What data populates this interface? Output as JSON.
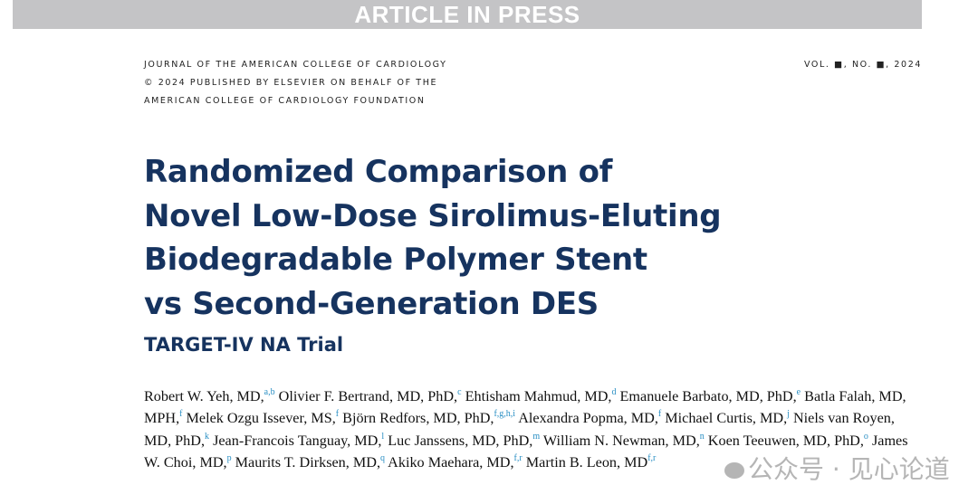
{
  "banner": {
    "text": "ARTICLE IN PRESS"
  },
  "journal": {
    "lines": [
      "JOURNAL OF THE AMERICAN COLLEGE OF CARDIOLOGY",
      "© 2024 PUBLISHED BY ELSEVIER ON BEHALF OF THE",
      "AMERICAN COLLEGE OF CARDIOLOGY FOUNDATION"
    ],
    "volume": "VOL. ■, NO. ■, 2024"
  },
  "title": {
    "lines": [
      "Randomized Comparison of",
      "Novel Low-Dose Sirolimus-Eluting",
      "Biodegradable Polymer Stent",
      "vs Second-Generation DES"
    ]
  },
  "subtitle": "TARGET-IV NA Trial",
  "authors": [
    {
      "name": "Robert W. Yeh, MD,",
      "sup": "a,b"
    },
    {
      "name": "Olivier F. Bertrand, MD, PhD,",
      "sup": "c"
    },
    {
      "name": "Ehtisham Mahmud, MD,",
      "sup": "d"
    },
    {
      "name": "Emanuele Barbato, MD, PhD,",
      "sup": "e"
    },
    {
      "name": "Batla Falah, MD, MPH,",
      "sup": "f"
    },
    {
      "name": "Melek Ozgu Issever, MS,",
      "sup": "f"
    },
    {
      "name": "Björn Redfors, MD, PhD,",
      "sup": "f,g,h,i"
    },
    {
      "name": "Alexandra Popma, MD,",
      "sup": "f"
    },
    {
      "name": "Michael Curtis, MD,",
      "sup": "j"
    },
    {
      "name": "Niels van Royen, MD, PhD,",
      "sup": "k"
    },
    {
      "name": "Jean-Francois Tanguay, MD,",
      "sup": "l"
    },
    {
      "name": "Luc Janssens, MD, PhD,",
      "sup": "m"
    },
    {
      "name": "William N. Newman, MD,",
      "sup": "n"
    },
    {
      "name": "Koen Teeuwen, MD, PhD,",
      "sup": "o"
    },
    {
      "name": "James W. Choi, MD,",
      "sup": "p"
    },
    {
      "name": "Maurits T. Dirksen, MD,",
      "sup": "q"
    },
    {
      "name": "Akiko Maehara, MD,",
      "sup": "f,r"
    },
    {
      "name": "Martin B. Leon, MD",
      "sup": "f,r"
    }
  ],
  "watermark": {
    "text": "公众号 · 见心论道"
  },
  "colors": {
    "title": "#16335f",
    "superscript": "#2a8fc4",
    "banner": "#c4c4c6"
  }
}
